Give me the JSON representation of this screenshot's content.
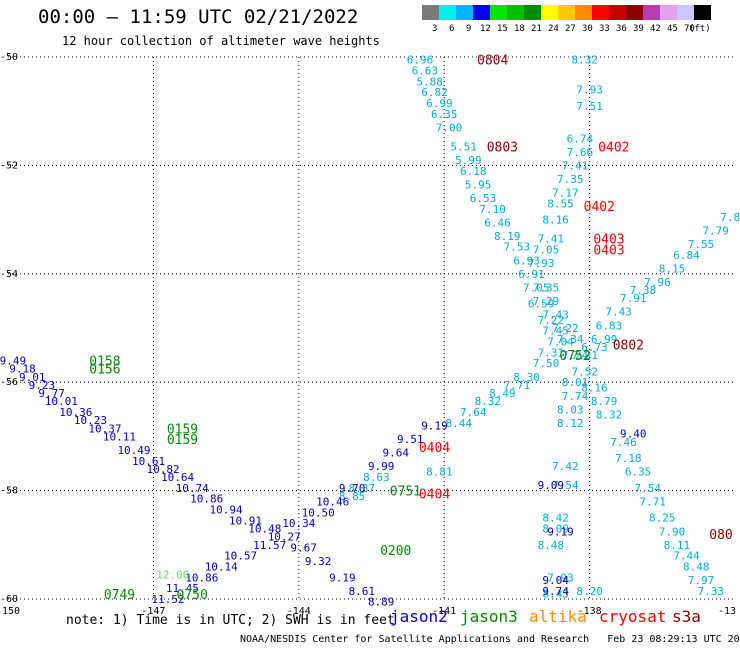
{
  "header": {
    "title": "00:00 – 11:59 UTC 02/21/2022",
    "subtitle": "12 hour collection of altimeter wave heights"
  },
  "colorbar": {
    "unit": "(ft)",
    "bins": [
      {
        "color": "#7a7a7a",
        "label": "3"
      },
      {
        "color": "#00eeee",
        "label": "6"
      },
      {
        "color": "#00b4ff",
        "label": "9"
      },
      {
        "color": "#0000ee",
        "label": "12"
      },
      {
        "color": "#00e600",
        "label": "15"
      },
      {
        "color": "#00c000",
        "label": "18"
      },
      {
        "color": "#008c00",
        "label": "21"
      },
      {
        "color": "#ffff00",
        "label": "24"
      },
      {
        "color": "#ffc800",
        "label": "27"
      },
      {
        "color": "#ff8c00",
        "label": "30"
      },
      {
        "color": "#ff0000",
        "label": "33"
      },
      {
        "color": "#c80000",
        "label": "36"
      },
      {
        "color": "#8c0000",
        "label": "39"
      },
      {
        "color": "#b43cb4",
        "label": "42"
      },
      {
        "color": "#e6a0f0",
        "label": "45"
      },
      {
        "color": "#c8c8ff",
        "label": "70"
      },
      {
        "color": "#000000",
        "label": ""
      }
    ]
  },
  "map": {
    "lon_range": [
      -150,
      -135
    ],
    "lat_range": [
      -60,
      -50
    ],
    "lon_ticks": [
      {
        "v": -150,
        "label": "-150"
      },
      {
        "v": -147,
        "label": "-147"
      },
      {
        "v": -144,
        "label": "-144"
      },
      {
        "v": -141,
        "label": "-141"
      },
      {
        "v": -138,
        "label": "-138"
      },
      {
        "v": -135,
        "label": "-13"
      }
    ],
    "lat_ticks": [
      {
        "v": -50,
        "label": "-50"
      },
      {
        "v": -52,
        "label": "-52"
      },
      {
        "v": -54,
        "label": "-54"
      },
      {
        "v": -56,
        "label": "-56"
      },
      {
        "v": -58,
        "label": "-58"
      },
      {
        "v": -60,
        "label": "-60"
      }
    ],
    "grid_lines": "dotted"
  },
  "tracks": [
    {
      "color": "#00aae6",
      "points": [
        {
          "lon": -141.5,
          "lat": -50.05,
          "v": "6.96"
        },
        {
          "lon": -141.4,
          "lat": -50.25,
          "v": "6.63"
        },
        {
          "lon": -141.3,
          "lat": -50.45,
          "v": "5.88"
        },
        {
          "lon": -141.2,
          "lat": -50.65,
          "v": "6.82"
        },
        {
          "lon": -141.1,
          "lat": -50.85,
          "v": "6.99"
        },
        {
          "lon": -141.0,
          "lat": -51.05,
          "v": "6.35"
        },
        {
          "lon": -140.9,
          "lat": -51.3,
          "v": "7.00"
        },
        {
          "lon": -140.6,
          "lat": -51.65,
          "v": "5.51"
        },
        {
          "lon": -140.5,
          "lat": -51.9,
          "v": "5.99"
        },
        {
          "lon": -140.4,
          "lat": -52.1,
          "v": "6.18"
        },
        {
          "lon": -140.3,
          "lat": -52.35,
          "v": "5.95"
        },
        {
          "lon": -140.2,
          "lat": -52.6,
          "v": "6.53"
        },
        {
          "lon": -140.0,
          "lat": -52.8,
          "v": "7.10"
        },
        {
          "lon": -139.9,
          "lat": -53.05,
          "v": "6.46"
        },
        {
          "lon": -139.7,
          "lat": -53.3,
          "v": "8.19"
        },
        {
          "lon": -139.5,
          "lat": -53.5,
          "v": "7.53"
        },
        {
          "lon": -139.3,
          "lat": -53.75,
          "v": "6.93"
        },
        {
          "lon": -139.2,
          "lat": -54.0,
          "v": "6.91"
        },
        {
          "lon": -139.1,
          "lat": -54.25,
          "v": "7.05"
        },
        {
          "lon": -139.0,
          "lat": -54.55,
          "v": "6.59"
        },
        {
          "lon": -138.8,
          "lat": -54.85,
          "v": "7.22"
        },
        {
          "lon": -138.7,
          "lat": -55.05,
          "v": "7.45"
        },
        {
          "lon": -138.6,
          "lat": -55.25,
          "v": "7.04"
        },
        {
          "lon": -138.8,
          "lat": -55.45,
          "v": "7.31"
        },
        {
          "lon": -138.9,
          "lat": -55.65,
          "v": "7.50"
        },
        {
          "lon": -139.3,
          "lat": -55.9,
          "v": "8.30"
        },
        {
          "lon": -139.5,
          "lat": -56.05,
          "v": "7.71"
        },
        {
          "lon": -139.8,
          "lat": -56.2,
          "v": "8.49"
        },
        {
          "lon": -140.1,
          "lat": -56.35,
          "v": "8.32"
        },
        {
          "lon": -140.4,
          "lat": -56.55,
          "v": "7.64"
        },
        {
          "lon": -140.7,
          "lat": -56.75,
          "v": "8.44"
        },
        {
          "lon": -141.1,
          "lat": -57.65,
          "v": "8.81"
        },
        {
          "lon": -142.4,
          "lat": -57.75,
          "v": "8.63"
        },
        {
          "lon": -142.7,
          "lat": -57.95,
          "v": "8.37"
        },
        {
          "lon": -142.9,
          "lat": -58.1,
          "v": "8.85"
        },
        {
          "lon": -138.0,
          "lat": -59.85,
          "v": "8.20"
        }
      ]
    },
    {
      "color": "#00aae6",
      "points": [
        {
          "lon": -138.1,
          "lat": -50.05,
          "v": "8.32"
        },
        {
          "lon": -138.0,
          "lat": -50.6,
          "v": "7.93"
        },
        {
          "lon": -138.0,
          "lat": -50.9,
          "v": "7.51"
        },
        {
          "lon": -138.2,
          "lat": -51.5,
          "v": "6.74"
        },
        {
          "lon": -138.2,
          "lat": -51.75,
          "v": "7.66"
        },
        {
          "lon": -138.3,
          "lat": -52.0,
          "v": "7.41"
        },
        {
          "lon": -138.4,
          "lat": -52.25,
          "v": "7.35"
        },
        {
          "lon": -138.5,
          "lat": -52.5,
          "v": "7.17"
        },
        {
          "lon": -138.6,
          "lat": -52.7,
          "v": "8.55"
        },
        {
          "lon": -138.7,
          "lat": -53.0,
          "v": "8.16"
        },
        {
          "lon": -138.8,
          "lat": -53.35,
          "v": "7.41"
        },
        {
          "lon": -138.9,
          "lat": -53.55,
          "v": "7.05"
        },
        {
          "lon": -139.0,
          "lat": -53.8,
          "v": "7.93"
        },
        {
          "lon": -138.9,
          "lat": -54.25,
          "v": "7.35"
        },
        {
          "lon": -138.9,
          "lat": -54.5,
          "v": "7.29"
        },
        {
          "lon": -138.7,
          "lat": -54.75,
          "v": "7.43"
        },
        {
          "lon": -138.5,
          "lat": -55.0,
          "v": "7.22"
        },
        {
          "lon": -138.4,
          "lat": -55.2,
          "v": "7.34"
        },
        {
          "lon": -138.3,
          "lat": -55.5,
          "v": "7.24"
        },
        {
          "lon": -138.1,
          "lat": -55.8,
          "v": "7.52"
        },
        {
          "lon": -137.9,
          "lat": -56.1,
          "v": "8.16"
        },
        {
          "lon": -137.7,
          "lat": -56.35,
          "v": "8.79"
        },
        {
          "lon": -137.6,
          "lat": -56.6,
          "v": "8.32"
        },
        {
          "lon": -137.3,
          "lat": -57.1,
          "v": "7.46"
        },
        {
          "lon": -137.2,
          "lat": -57.4,
          "v": "7.18"
        },
        {
          "lon": -137.0,
          "lat": -57.65,
          "v": "6.35"
        },
        {
          "lon": -136.8,
          "lat": -57.95,
          "v": "7.54"
        },
        {
          "lon": -136.7,
          "lat": -58.2,
          "v": "7.71"
        },
        {
          "lon": -136.5,
          "lat": -58.5,
          "v": "8.25"
        },
        {
          "lon": -136.3,
          "lat": -58.75,
          "v": "7.90"
        },
        {
          "lon": -136.2,
          "lat": -59.0,
          "v": "8.11"
        },
        {
          "lon": -136.0,
          "lat": -59.2,
          "v": "7.44"
        },
        {
          "lon": -135.8,
          "lat": -59.4,
          "v": "8.48"
        },
        {
          "lon": -135.7,
          "lat": -59.65,
          "v": "7.97"
        },
        {
          "lon": -135.5,
          "lat": -59.85,
          "v": "7.33"
        },
        {
          "lon": -135.4,
          "lat": -60.15,
          "v": "8.12"
        },
        {
          "lon": -135.2,
          "lat": -60.45,
          "v": "8.79"
        },
        {
          "lon": -135.05,
          "lat": -60.7,
          "v": "9.6"
        }
      ]
    },
    {
      "color": "#00aae6",
      "points": [
        {
          "lon": -138.3,
          "lat": -56.0,
          "v": "8.01"
        },
        {
          "lon": -138.3,
          "lat": -56.25,
          "v": "7.74"
        },
        {
          "lon": -138.4,
          "lat": -56.5,
          "v": "8.03"
        },
        {
          "lon": -138.4,
          "lat": -56.75,
          "v": "8.12"
        },
        {
          "lon": -138.5,
          "lat": -57.55,
          "v": "7.42"
        },
        {
          "lon": -138.5,
          "lat": -57.9,
          "v": "7.54"
        },
        {
          "lon": -138.7,
          "lat": -58.5,
          "v": "8.42"
        },
        {
          "lon": -138.7,
          "lat": -58.7,
          "v": "8.09"
        },
        {
          "lon": -138.8,
          "lat": -59.0,
          "v": "8.48"
        },
        {
          "lon": -138.6,
          "lat": -59.6,
          "v": "7.93"
        },
        {
          "lon": -138.7,
          "lat": -59.9,
          "v": "8.43"
        }
      ]
    },
    {
      "color": "#00aae6",
      "points": [
        {
          "lon": -135.1,
          "lat": -52.95,
          "v": "7.8"
        },
        {
          "lon": -135.4,
          "lat": -53.2,
          "v": "7.79"
        },
        {
          "lon": -135.7,
          "lat": -53.45,
          "v": "7.55"
        },
        {
          "lon": -136.0,
          "lat": -53.65,
          "v": "6.84"
        },
        {
          "lon": -136.3,
          "lat": -53.9,
          "v": "8.15"
        },
        {
          "lon": -136.6,
          "lat": -54.15,
          "v": "7.96"
        },
        {
          "lon": -136.9,
          "lat": -54.3,
          "v": "7.38"
        },
        {
          "lon": -137.1,
          "lat": -54.45,
          "v": "7.91"
        },
        {
          "lon": -137.4,
          "lat": -54.7,
          "v": "7.43"
        },
        {
          "lon": -137.6,
          "lat": -54.95,
          "v": "6.83"
        },
        {
          "lon": -137.7,
          "lat": -55.2,
          "v": "6.99"
        },
        {
          "lon": -137.9,
          "lat": -55.35,
          "v": "6.73"
        },
        {
          "lon": -138.1,
          "lat": -55.5,
          "v": "7.21"
        }
      ]
    },
    {
      "color": "#0000cc",
      "points": [
        {
          "lon": -149.9,
          "lat": -55.6,
          "v": "9.49"
        },
        {
          "lon": -149.7,
          "lat": -55.75,
          "v": "9.18"
        },
        {
          "lon": -149.5,
          "lat": -55.9,
          "v": "9.01"
        },
        {
          "lon": -149.3,
          "lat": -56.05,
          "v": "9.23"
        },
        {
          "lon": -149.1,
          "lat": -56.2,
          "v": "9.77"
        },
        {
          "lon": -148.9,
          "lat": -56.35,
          "v": "10.01"
        },
        {
          "lon": -148.6,
          "lat": -56.55,
          "v": "10.36"
        },
        {
          "lon": -148.3,
          "lat": -56.7,
          "v": "10.23"
        },
        {
          "lon": -148.0,
          "lat": -56.85,
          "v": "10.37"
        },
        {
          "lon": -147.7,
          "lat": -57.0,
          "v": "10.11"
        },
        {
          "lon": -147.4,
          "lat": -57.25,
          "v": "10.49"
        },
        {
          "lon": -147.1,
          "lat": -57.45,
          "v": "10.61"
        },
        {
          "lon": -146.8,
          "lat": -57.6,
          "v": "10.82"
        },
        {
          "lon": -146.5,
          "lat": -57.75,
          "v": "10.64"
        },
        {
          "lon": -146.2,
          "lat": -57.95,
          "v": "10.74"
        },
        {
          "lon": -145.9,
          "lat": -58.15,
          "v": "10.86"
        },
        {
          "lon": -145.5,
          "lat": -58.35,
          "v": "10.94"
        },
        {
          "lon": -145.1,
          "lat": -58.55,
          "v": "10.91"
        },
        {
          "lon": -144.7,
          "lat": -58.7,
          "v": "10.48"
        },
        {
          "lon": -144.3,
          "lat": -58.85,
          "v": "10.27"
        },
        {
          "lon": -143.9,
          "lat": -59.05,
          "v": "9.67"
        },
        {
          "lon": -143.6,
          "lat": -59.3,
          "v": "9.32"
        },
        {
          "lon": -143.1,
          "lat": -59.6,
          "v": "9.19"
        },
        {
          "lon": -142.7,
          "lat": -59.85,
          "v": "8.61"
        },
        {
          "lon": -142.3,
          "lat": -60.05,
          "v": "8.89"
        },
        {
          "lon": -141.9,
          "lat": -60.3,
          "v": "9.09"
        },
        {
          "lon": -141.5,
          "lat": -60.55,
          "v": "9.34"
        },
        {
          "lon": -140.8,
          "lat": -60.85,
          "v": "9.54"
        }
      ]
    },
    {
      "color": "#0000cc",
      "points": [
        {
          "lon": -141.2,
          "lat": -56.8,
          "v": "9.19"
        },
        {
          "lon": -141.7,
          "lat": -57.05,
          "v": "9.51"
        },
        {
          "lon": -142.0,
          "lat": -57.3,
          "v": "9.64"
        },
        {
          "lon": -142.3,
          "lat": -57.55,
          "v": "9.99"
        },
        {
          "lon": -142.9,
          "lat": -57.95,
          "v": "9.70"
        },
        {
          "lon": -143.3,
          "lat": -58.2,
          "v": "10.46"
        },
        {
          "lon": -143.6,
          "lat": -58.4,
          "v": "10.50"
        },
        {
          "lon": -144.0,
          "lat": -58.6,
          "v": "10.34"
        },
        {
          "lon": -144.6,
          "lat": -59.0,
          "v": "11.57"
        },
        {
          "lon": -145.2,
          "lat": -59.2,
          "v": "10.57"
        },
        {
          "lon": -145.6,
          "lat": -59.4,
          "v": "10.14"
        },
        {
          "lon": -146.0,
          "lat": -59.6,
          "v": "10.86"
        },
        {
          "lon": -146.4,
          "lat": -59.8,
          "v": "11.45"
        },
        {
          "lon": -146.7,
          "lat": -60.0,
          "v": "11.52"
        },
        {
          "lon": -147.2,
          "lat": -60.2,
          "v": "10.42"
        },
        {
          "lon": -147.6,
          "lat": -60.5,
          "v": "11.04"
        },
        {
          "lon": -148.1,
          "lat": -60.75,
          "v": "10.75"
        },
        {
          "lon": -148.6,
          "lat": -61.0,
          "v": "11.41"
        }
      ]
    },
    {
      "color": "#0000cc",
      "points": [
        {
          "lon": -138.6,
          "lat": -58.75,
          "v": "9.19"
        },
        {
          "lon": -138.7,
          "lat": -59.65,
          "v": "9.04"
        },
        {
          "lon": -138.7,
          "lat": -59.85,
          "v": "9.74"
        },
        {
          "lon": -138.8,
          "lat": -57.9,
          "v": "9.09"
        },
        {
          "lon": -137.1,
          "lat": -56.95,
          "v": "9.40"
        }
      ]
    },
    {
      "color": "#66dd66",
      "points": [
        {
          "lon": -146.6,
          "lat": -59.55,
          "v": "12.00"
        },
        {
          "lon": -148.0,
          "lat": -60.85,
          "v": "12.14"
        }
      ]
    }
  ],
  "time_labels": [
    {
      "lon": -140.0,
      "lat": -50.05,
      "text": "0804",
      "color": "#8c0000"
    },
    {
      "lon": -139.8,
      "lat": -51.65,
      "text": "0803",
      "color": "#8c0000"
    },
    {
      "lon": -137.5,
      "lat": -51.65,
      "text": "0402",
      "color": "#ff0000"
    },
    {
      "lon": -137.8,
      "lat": -52.75,
      "text": "0402",
      "color": "#ff0000"
    },
    {
      "lon": -137.6,
      "lat": -53.35,
      "text": "0403",
      "color": "#ff0000"
    },
    {
      "lon": -137.6,
      "lat": -53.55,
      "text": "0403",
      "color": "#ff0000"
    },
    {
      "lon": -137.2,
      "lat": -55.3,
      "text": "0802",
      "color": "#8c0000"
    },
    {
      "lon": -138.3,
      "lat": -55.5,
      "text": "0752",
      "color": "#008c00"
    },
    {
      "lon": -148.0,
      "lat": -55.6,
      "text": "0158",
      "color": "#008c00"
    },
    {
      "lon": -148.0,
      "lat": -55.75,
      "text": "0156",
      "color": "#008c00"
    },
    {
      "lon": -146.4,
      "lat": -56.85,
      "text": "0159",
      "color": "#008c00"
    },
    {
      "lon": -146.4,
      "lat": -57.05,
      "text": "0159",
      "color": "#008c00"
    },
    {
      "lon": -141.8,
      "lat": -58.0,
      "text": "0751",
      "color": "#008c00"
    },
    {
      "lon": -141.2,
      "lat": -57.2,
      "text": "0404",
      "color": "#ff0000"
    },
    {
      "lon": -141.2,
      "lat": -58.05,
      "text": "0404",
      "color": "#ff0000"
    },
    {
      "lon": -142.0,
      "lat": -59.1,
      "text": "0200",
      "color": "#008c00"
    },
    {
      "lon": -146.2,
      "lat": -60.55,
      "text": "0750",
      "color": "#008c00"
    },
    {
      "lon": -147.7,
      "lat": -61.1,
      "text": "0749",
      "color": "#008c00"
    },
    {
      "lon": -134.7,
      "lat": -58.8,
      "text": "080",
      "color": "#8c0000"
    }
  ],
  "footer": {
    "note": "note: 1) Time is in UTC; 2) SWH is in feet",
    "satellites": [
      {
        "name": "jason2",
        "color": "#0000ee"
      },
      {
        "name": "jason3",
        "color": "#008c00"
      },
      {
        "name": "altika",
        "color": "#ff8c00"
      },
      {
        "name": "cryosat",
        "color": "#ff0000"
      },
      {
        "name": "s3a",
        "color": "#8c0000"
      }
    ],
    "credit": "NOAA/NESDIS Center for Satellite Applications and Research   Feb 23 08:29:13 UTC 2022"
  }
}
